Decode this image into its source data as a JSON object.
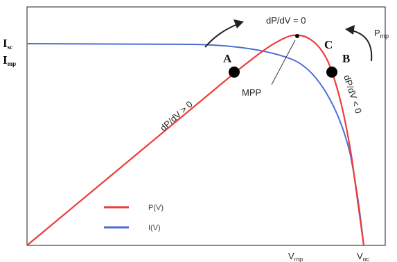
{
  "diagram": {
    "y_labels": {
      "isc_main": "I",
      "isc_sub": "sc",
      "imp_main": "I",
      "imp_sub": "mp"
    },
    "x_labels": {
      "vmp_main": "V",
      "vmp_sub": "mp",
      "voc_main": "V",
      "voc_sub": "oc"
    },
    "top_annotation": "dP/dV = 0",
    "pmp_main": "P",
    "pmp_sub": "mp",
    "mpp_label": "MPP",
    "slope_left": "dP/dV > 0",
    "slope_right": "dP/dV < 0",
    "point_a": "A",
    "point_b": "B",
    "point_c": "C",
    "legend": [
      {
        "label": "P(V)",
        "color": "#f03a3a"
      },
      {
        "label": "I(V)",
        "color": "#4a6fd4"
      }
    ],
    "colors": {
      "power": "#f03a3a",
      "current": "#4a6fd4",
      "axes": "#333333",
      "marker": "#000000"
    }
  }
}
